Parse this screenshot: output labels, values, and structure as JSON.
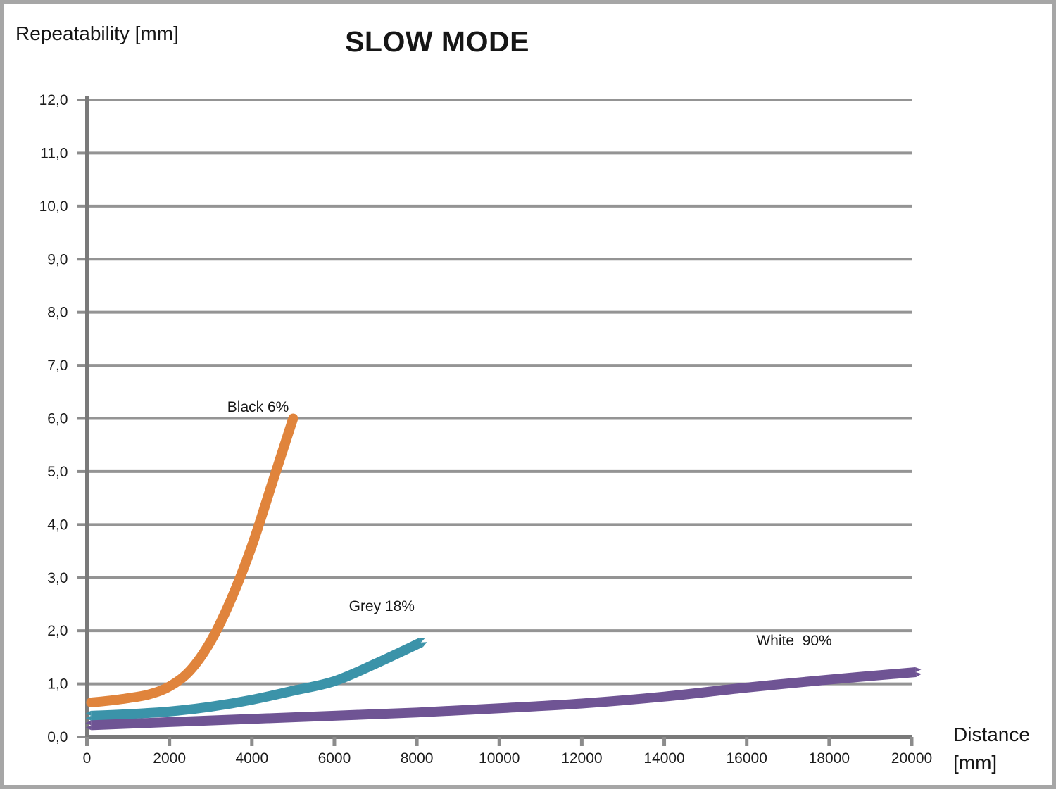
{
  "chart_data": {
    "type": "line",
    "title": "SLOW MODE",
    "ylabel": "Repeatability [mm]",
    "xlabel_line1": "Distance",
    "xlabel_line2": "[mm]",
    "xlim": [
      0,
      20000
    ],
    "ylim": [
      0,
      12
    ],
    "x_ticks": [
      0,
      2000,
      4000,
      6000,
      8000,
      10000,
      12000,
      14000,
      16000,
      18000,
      20000
    ],
    "x_tick_labels": [
      "0",
      "2000",
      "4000",
      "6000",
      "8000",
      "10000",
      "12000",
      "14000",
      "16000",
      "18000",
      "20000"
    ],
    "y_ticks": [
      0,
      1,
      2,
      3,
      4,
      5,
      6,
      7,
      8,
      9,
      10,
      11,
      12
    ],
    "y_tick_labels": [
      "0,0",
      "1,0",
      "2,0",
      "3,0",
      "4,0",
      "5,0",
      "6,0",
      "7,0",
      "8,0",
      "9,0",
      "10,0",
      "11,0",
      "12,0"
    ],
    "grid": "horizontal",
    "legend_position": "inline-labels",
    "colors": {
      "gridline": "#949494",
      "axis": "#7A7A7A",
      "tick": "#8C8C8C",
      "frame": "#A6A6A6",
      "text": "#161616"
    },
    "series": [
      {
        "name": "Black 6%",
        "color": "#E0843C",
        "cap": "round",
        "label": {
          "text": "Black 6%",
          "x": 4150,
          "y": 6.2
        },
        "points": [
          [
            100,
            0.65
          ],
          [
            500,
            0.68
          ],
          [
            1000,
            0.73
          ],
          [
            1500,
            0.8
          ],
          [
            2000,
            0.95
          ],
          [
            2500,
            1.25
          ],
          [
            3000,
            1.8
          ],
          [
            3500,
            2.6
          ],
          [
            4000,
            3.6
          ],
          [
            4500,
            4.8
          ],
          [
            5000,
            6.0
          ]
        ]
      },
      {
        "name": "Grey 18%",
        "color": "#3B93A9",
        "cap": "jagged",
        "label": {
          "text": "Grey 18%",
          "x": 7150,
          "y": 2.45
        },
        "points": [
          [
            100,
            0.4
          ],
          [
            1000,
            0.43
          ],
          [
            2000,
            0.48
          ],
          [
            3000,
            0.57
          ],
          [
            4000,
            0.7
          ],
          [
            5000,
            0.87
          ],
          [
            6000,
            1.05
          ],
          [
            7000,
            1.38
          ],
          [
            8100,
            1.78
          ]
        ]
      },
      {
        "name": "White 90%",
        "color": "#6F5494",
        "cap": "jagged",
        "label": {
          "text": "White  90%",
          "x": 17150,
          "y": 1.8
        },
        "points": [
          [
            100,
            0.22
          ],
          [
            2000,
            0.28
          ],
          [
            4000,
            0.34
          ],
          [
            6000,
            0.4
          ],
          [
            8000,
            0.46
          ],
          [
            10000,
            0.54
          ],
          [
            12000,
            0.63
          ],
          [
            14000,
            0.76
          ],
          [
            16000,
            0.93
          ],
          [
            18000,
            1.08
          ],
          [
            20100,
            1.22
          ]
        ]
      }
    ]
  }
}
